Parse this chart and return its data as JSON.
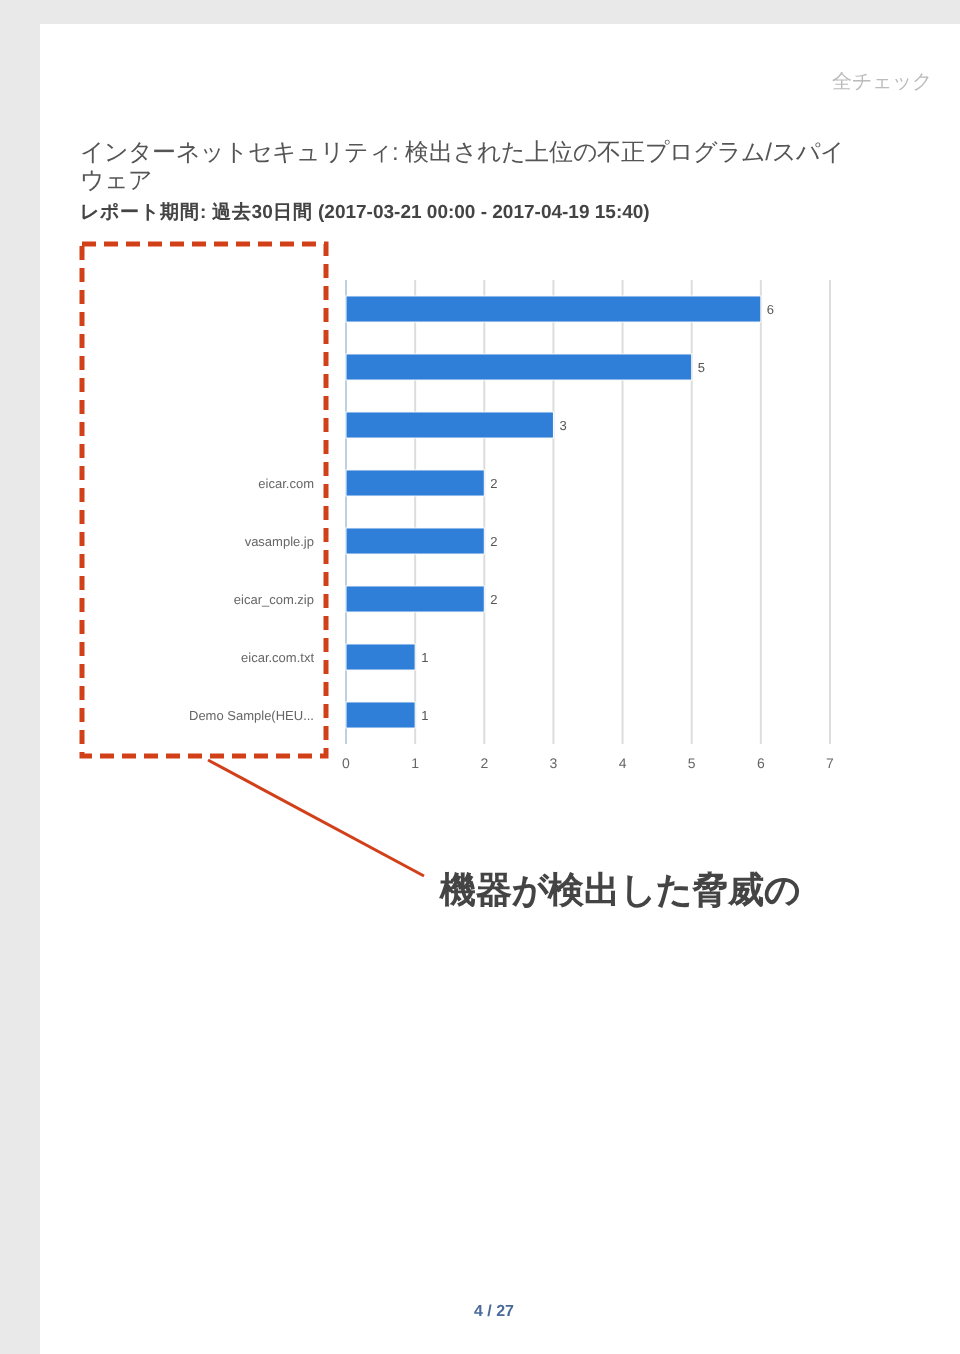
{
  "chart_data": {
    "type": "bar",
    "orientation": "horizontal",
    "title": "インターネットセキュリティ: 検出された上位の不正プログラム/スパイウェア",
    "subtitle": "レポート期間: 過去30日間 (2017-03-21 00:00 - 2017-04-19 15:40)",
    "categories": [
      null,
      null,
      null,
      "eicar.com",
      "vasample.jp",
      "eicar_com.zip",
      "eicar.com.txt",
      "Demo Sample(HEU..."
    ],
    "values": [
      6,
      5,
      3,
      2,
      2,
      2,
      1,
      1
    ],
    "color": "#2f7ed8",
    "xlim": [
      0,
      7
    ],
    "xticks": [
      0,
      1,
      2,
      3,
      4,
      5,
      6,
      7
    ],
    "grid": "x",
    "data_labels": true,
    "annotations": [
      "全チェック",
      "機器が検出した脅威の",
      "4 / 27"
    ]
  }
}
